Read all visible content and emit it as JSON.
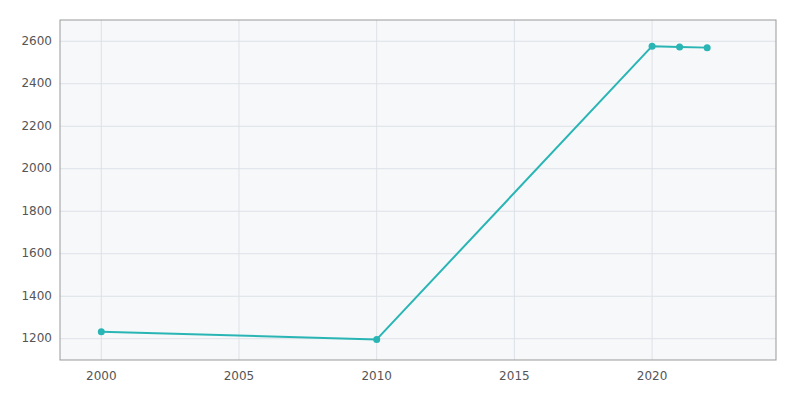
{
  "chart_data": {
    "type": "line",
    "x": [
      2000,
      2010,
      2020,
      2021,
      2022
    ],
    "values": [
      1233,
      1197,
      2577,
      2573,
      2570
    ],
    "color": "#2ab5b5",
    "marker": "circle",
    "xlim": [
      1998.5,
      2024.5
    ],
    "ylim": [
      1100,
      2700
    ],
    "xticks": [
      2000,
      2005,
      2010,
      2015,
      2020
    ],
    "yticks": [
      1200,
      1400,
      1600,
      1800,
      2000,
      2200,
      2400,
      2600
    ],
    "grid": true
  }
}
